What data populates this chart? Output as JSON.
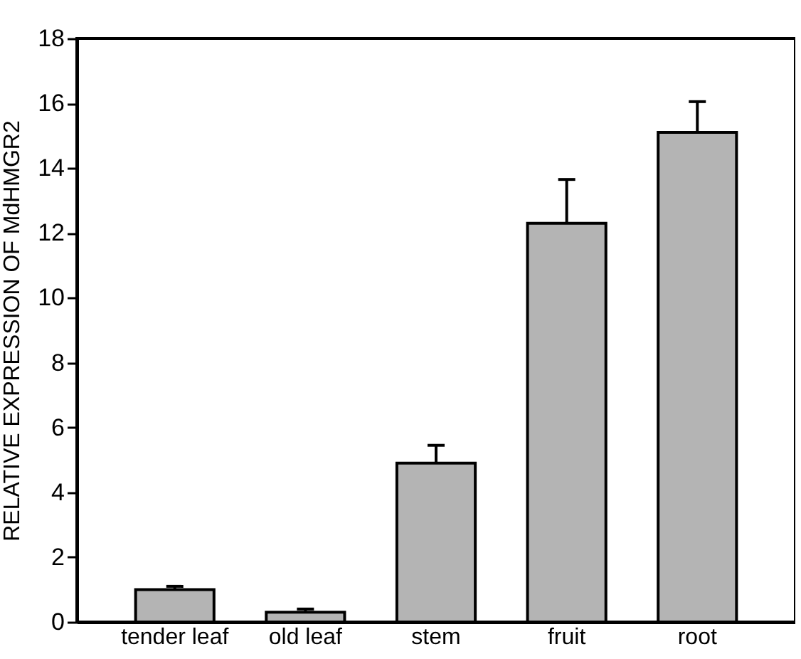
{
  "chart_data": {
    "type": "bar",
    "ylabel": "RELATIVE EXPRESSION OF MdHMGR2",
    "categories": [
      "tender leaf",
      "old leaf",
      "stem",
      "fruit",
      "root"
    ],
    "values": [
      1.0,
      0.3,
      4.9,
      12.3,
      15.1
    ],
    "errors": [
      0.1,
      0.1,
      0.55,
      1.35,
      0.95
    ],
    "color": "#b4b4b4",
    "ylim": [
      0,
      18
    ],
    "yticks": [
      0,
      2,
      4,
      6,
      8,
      10,
      12,
      14,
      16,
      18
    ],
    "grid": false
  }
}
